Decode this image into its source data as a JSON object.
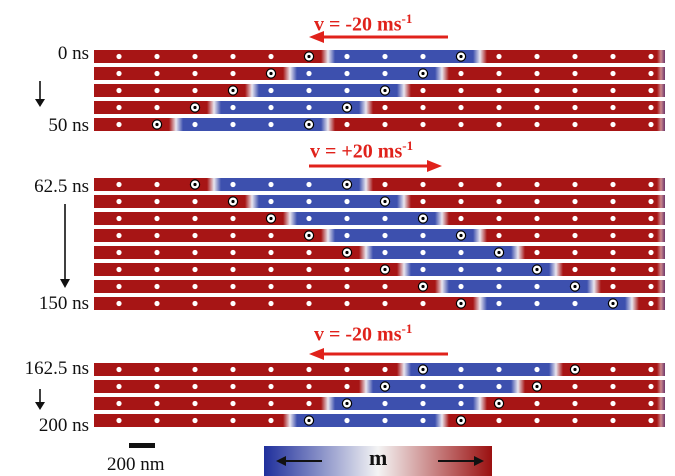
{
  "time_labels": [
    {
      "text": "0 ns"
    },
    {
      "text": "50 ns"
    },
    {
      "text": "62.5 ns"
    },
    {
      "text": "150 ns"
    },
    {
      "text": "162.5 ns"
    },
    {
      "text": "200 ns"
    }
  ],
  "velocity_labels": [
    {
      "text": "v = -20 ms",
      "sup": "-1",
      "direction": "left"
    },
    {
      "text": "v = +20 ms",
      "sup": "-1",
      "direction": "right"
    },
    {
      "text": "v = -20 ms",
      "sup": "-1",
      "direction": "left"
    }
  ],
  "scale_bar": {
    "text": "200 nm"
  },
  "colorbar": {
    "symbol": "m",
    "low_color": "#1f2f9c",
    "mid_color": "#f4f4f4",
    "high_color": "#9b1010"
  },
  "colors": {
    "up": "#a71515",
    "down": "#3d50ae",
    "arrow": "#e0221b",
    "pin": "#ffffff"
  },
  "pin_count": 15,
  "groups": [
    {
      "strips": [
        {
          "domain": [
            5.5,
            9.5
          ],
          "pinned": [
            5,
            9
          ]
        },
        {
          "domain": [
            4.5,
            8.5
          ],
          "pinned": [
            4,
            8
          ]
        },
        {
          "domain": [
            3.5,
            7.5
          ],
          "pinned": [
            3,
            7
          ]
        },
        {
          "domain": [
            2.5,
            6.5
          ],
          "pinned": [
            2,
            6
          ]
        },
        {
          "domain": [
            1.5,
            5.5
          ],
          "pinned": [
            1,
            5
          ]
        }
      ]
    },
    {
      "strips": [
        {
          "domain": [
            2.5,
            6.5
          ],
          "pinned": [
            2,
            6
          ]
        },
        {
          "domain": [
            3.5,
            7.5
          ],
          "pinned": [
            3,
            7
          ]
        },
        {
          "domain": [
            4.5,
            8.5
          ],
          "pinned": [
            4,
            8
          ]
        },
        {
          "domain": [
            5.5,
            9.5
          ],
          "pinned": [
            5,
            9
          ]
        },
        {
          "domain": [
            6.5,
            10.5
          ],
          "pinned": [
            6,
            10
          ]
        },
        {
          "domain": [
            7.5,
            11.5
          ],
          "pinned": [
            7,
            11
          ]
        },
        {
          "domain": [
            8.5,
            12.5
          ],
          "pinned": [
            8,
            12
          ]
        },
        {
          "domain": [
            9.5,
            13.5
          ],
          "pinned": [
            9,
            13
          ]
        }
      ]
    },
    {
      "strips": [
        {
          "domain": [
            7.5,
            11.5
          ],
          "pinned": [
            8,
            12
          ]
        },
        {
          "domain": [
            6.5,
            10.5
          ],
          "pinned": [
            7,
            11
          ]
        },
        {
          "domain": [
            5.5,
            9.5
          ],
          "pinned": [
            6,
            10
          ]
        },
        {
          "domain": [
            4.5,
            8.5
          ],
          "pinned": [
            5,
            9
          ]
        }
      ]
    }
  ]
}
